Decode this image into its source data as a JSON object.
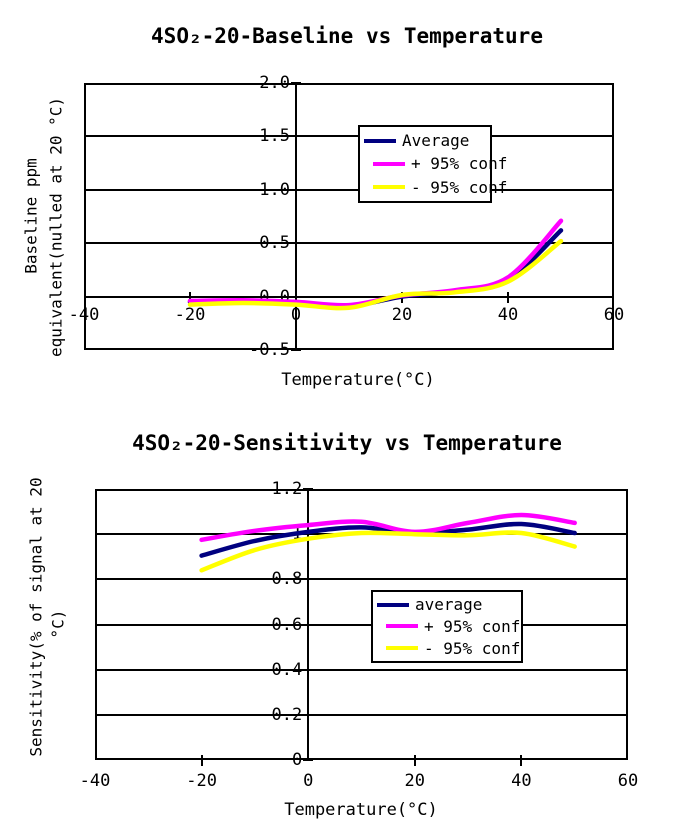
{
  "background_color": "#FFFFFF",
  "text_color": "#000000",
  "chart_data": [
    {
      "type": "line",
      "title": "4SO₂-20-Baseline vs Temperature",
      "ylabel_line1": "Baseline ppm",
      "ylabel_line2": "equivalent(nulled at 20 °C)",
      "xlabel": "Temperature(°C)",
      "x": [
        -20,
        -10,
        0,
        10,
        20,
        30,
        40,
        50
      ],
      "series": [
        {
          "name": "Average",
          "color": "#000080",
          "values": [
            -0.05,
            -0.045,
            -0.06,
            -0.09,
            0.0,
            0.05,
            0.16,
            0.62
          ]
        },
        {
          "name": "+ 95% conf",
          "color": "#FF00FF",
          "values": [
            -0.04,
            -0.035,
            -0.05,
            -0.08,
            0.01,
            0.06,
            0.18,
            0.71
          ]
        },
        {
          "name": "- 95% conf",
          "color": "#FFFF00",
          "values": [
            -0.075,
            -0.06,
            -0.075,
            -0.105,
            0.015,
            0.04,
            0.14,
            0.52
          ]
        }
      ],
      "xlim": [
        -40,
        60
      ],
      "ylim": [
        -0.5,
        2.0
      ],
      "x_ticks": [
        -40,
        -20,
        0,
        20,
        40,
        60
      ],
      "x_tick_labels": [
        "-40",
        "-20",
        "0",
        "20",
        "40",
        "60"
      ],
      "y_ticks": [
        2.0,
        1.5,
        1.0,
        0.5,
        0.0,
        -0.5
      ],
      "y_tick_labels": [
        "2.0",
        "1.5",
        "1.0",
        "0.5",
        "0.0",
        "-0.5"
      ],
      "grid": true,
      "legend_position": "inside-top-center",
      "y_axis_cross_at_x": 0,
      "x_axis_cross_at_y": 0.0
    },
    {
      "type": "line",
      "title": "4SO₂-20-Sensitivity vs Temperature",
      "ylabel_line1": "Sensitivity(% of signal at 20",
      "ylabel_line2": "°C)",
      "xlabel": "Temperature(°C)",
      "x": [
        -20,
        -10,
        0,
        10,
        20,
        30,
        40,
        50
      ],
      "series": [
        {
          "name": "average",
          "color": "#000080",
          "values": [
            0.905,
            0.97,
            1.01,
            1.03,
            1.005,
            1.02,
            1.045,
            1.005
          ]
        },
        {
          "name": "+ 95% conf",
          "color": "#FF00FF",
          "values": [
            0.975,
            1.015,
            1.04,
            1.055,
            1.01,
            1.05,
            1.085,
            1.05
          ]
        },
        {
          "name": "- 95% conf",
          "color": "#FFFF00",
          "values": [
            0.84,
            0.93,
            0.98,
            1.005,
            1.0,
            0.995,
            1.005,
            0.945
          ]
        }
      ],
      "xlim": [
        -40,
        60
      ],
      "ylim": [
        0,
        1.2
      ],
      "x_ticks": [
        -40,
        -20,
        0,
        20,
        40,
        60
      ],
      "x_tick_labels": [
        "-40",
        "-20",
        "0",
        "20",
        "40",
        "60"
      ],
      "y_ticks": [
        1.2,
        1.0,
        0.8,
        0.6,
        0.4,
        0.2,
        0
      ],
      "y_tick_labels": [
        "1.2",
        "1",
        "0.8",
        "0.6",
        "0.4",
        "0.2",
        "0"
      ],
      "grid": true,
      "legend_position": "inside-center-right",
      "y_axis_cross_at_x": 0,
      "x_axis_cross_at_y": 0
    }
  ]
}
